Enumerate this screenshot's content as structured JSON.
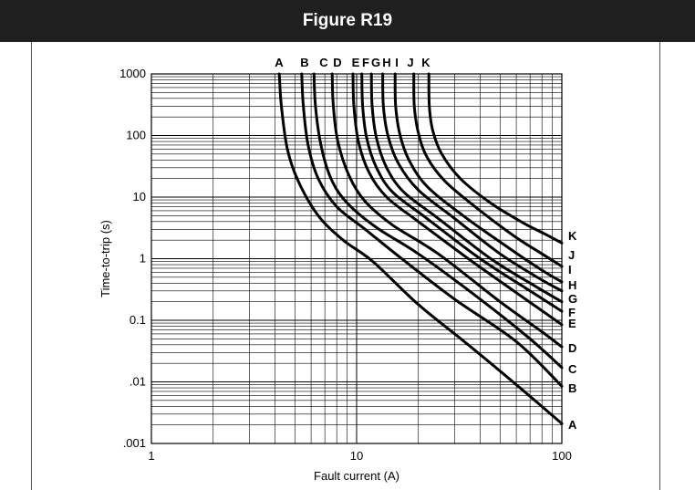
{
  "figure": {
    "title": "Figure R19"
  },
  "chart_data": {
    "type": "line",
    "xlabel": "Fault current (A)",
    "ylabel": "Time-to-trip (s)",
    "x_scale": "log",
    "y_scale": "log",
    "xlim": [
      1,
      100
    ],
    "ylim": [
      0.001,
      1000
    ],
    "x_ticks": [
      {
        "value": 1,
        "label": "1"
      },
      {
        "value": 10,
        "label": "10"
      },
      {
        "value": 100,
        "label": "100"
      }
    ],
    "y_ticks": [
      {
        "value": 1000,
        "label": "1000"
      },
      {
        "value": 100,
        "label": "100"
      },
      {
        "value": 10,
        "label": "10"
      },
      {
        "value": 1,
        "label": "1"
      },
      {
        "value": 0.1,
        "label": "0.1"
      },
      {
        "value": 0.01,
        "label": ".01"
      },
      {
        "value": 0.001,
        "label": ".001"
      }
    ],
    "grid": true,
    "series": [
      {
        "name": "A",
        "points": [
          [
            4.2,
            1000
          ],
          [
            4.3,
            300
          ],
          [
            4.6,
            60
          ],
          [
            5.2,
            18
          ],
          [
            6.5,
            5
          ],
          [
            8.6,
            2
          ],
          [
            12,
            0.9
          ],
          [
            20,
            0.18
          ],
          [
            35,
            0.04
          ],
          [
            60,
            0.009
          ],
          [
            100,
            0.0021
          ]
        ]
      },
      {
        "name": "B",
        "points": [
          [
            5.4,
            1000
          ],
          [
            5.5,
            300
          ],
          [
            5.8,
            70
          ],
          [
            6.5,
            20
          ],
          [
            8,
            7
          ],
          [
            11,
            3
          ],
          [
            16,
            1.1
          ],
          [
            30,
            0.22
          ],
          [
            60,
            0.045
          ],
          [
            100,
            0.0085
          ]
        ]
      },
      {
        "name": "C",
        "points": [
          [
            6.2,
            1000
          ],
          [
            6.3,
            300
          ],
          [
            6.7,
            70
          ],
          [
            7.5,
            20
          ],
          [
            9,
            8
          ],
          [
            12.5,
            3.2
          ],
          [
            20,
            1.2
          ],
          [
            40,
            0.22
          ],
          [
            70,
            0.05
          ],
          [
            100,
            0.017
          ]
        ]
      },
      {
        "name": "D",
        "points": [
          [
            7.6,
            1000
          ],
          [
            7.7,
            300
          ],
          [
            8.1,
            80
          ],
          [
            9.2,
            22
          ],
          [
            11,
            8.5
          ],
          [
            15,
            3.5
          ],
          [
            25,
            1.2
          ],
          [
            50,
            0.2
          ],
          [
            80,
            0.065
          ],
          [
            100,
            0.037
          ]
        ]
      },
      {
        "name": "E",
        "points": [
          [
            9.6,
            1000
          ],
          [
            9.7,
            300
          ],
          [
            10.2,
            80
          ],
          [
            11.5,
            25
          ],
          [
            14,
            10
          ],
          [
            20,
            4
          ],
          [
            35,
            1
          ],
          [
            60,
            0.28
          ],
          [
            100,
            0.085
          ]
        ]
      },
      {
        "name": "F",
        "points": [
          [
            10.6,
            1000
          ],
          [
            10.7,
            300
          ],
          [
            11.2,
            90
          ],
          [
            12.5,
            30
          ],
          [
            15,
            12
          ],
          [
            22,
            4.5
          ],
          [
            40,
            1
          ],
          [
            70,
            0.3
          ],
          [
            100,
            0.14
          ]
        ]
      },
      {
        "name": "G",
        "points": [
          [
            11.8,
            1000
          ],
          [
            11.9,
            300
          ],
          [
            12.5,
            90
          ],
          [
            14,
            30
          ],
          [
            17,
            12
          ],
          [
            25,
            4.5
          ],
          [
            45,
            1
          ],
          [
            75,
            0.35
          ],
          [
            100,
            0.2
          ]
        ]
      },
      {
        "name": "H",
        "points": [
          [
            13.4,
            1000
          ],
          [
            13.5,
            300
          ],
          [
            14.2,
            100
          ],
          [
            16,
            35
          ],
          [
            20,
            13
          ],
          [
            30,
            4.5
          ],
          [
            50,
            1.2
          ],
          [
            80,
            0.45
          ],
          [
            100,
            0.3
          ]
        ]
      },
      {
        "name": "I",
        "points": [
          [
            15.4,
            1000
          ],
          [
            15.5,
            300
          ],
          [
            16.3,
            100
          ],
          [
            18,
            40
          ],
          [
            22,
            15
          ],
          [
            33,
            5
          ],
          [
            55,
            1.5
          ],
          [
            80,
            0.65
          ],
          [
            100,
            0.42
          ]
        ]
      },
      {
        "name": "J",
        "points": [
          [
            19,
            1000
          ],
          [
            19.1,
            300
          ],
          [
            20,
            110
          ],
          [
            22,
            45
          ],
          [
            27,
            18
          ],
          [
            40,
            6
          ],
          [
            60,
            2.2
          ],
          [
            80,
            1.2
          ],
          [
            100,
            0.75
          ]
        ]
      },
      {
        "name": "K",
        "points": [
          [
            22.5,
            1000
          ],
          [
            22.6,
            300
          ],
          [
            23.5,
            120
          ],
          [
            26,
            50
          ],
          [
            32,
            20
          ],
          [
            45,
            8
          ],
          [
            65,
            3.8
          ],
          [
            85,
            2.4
          ],
          [
            100,
            1.8
          ]
        ]
      }
    ],
    "top_labels": [
      "A",
      "B",
      "C",
      "D",
      "E",
      "F",
      "G",
      "H",
      "I",
      "J",
      "K"
    ],
    "right_labels": [
      "A",
      "B",
      "C",
      "D",
      "E",
      "F",
      "G",
      "H",
      "I",
      "J",
      "K"
    ]
  }
}
